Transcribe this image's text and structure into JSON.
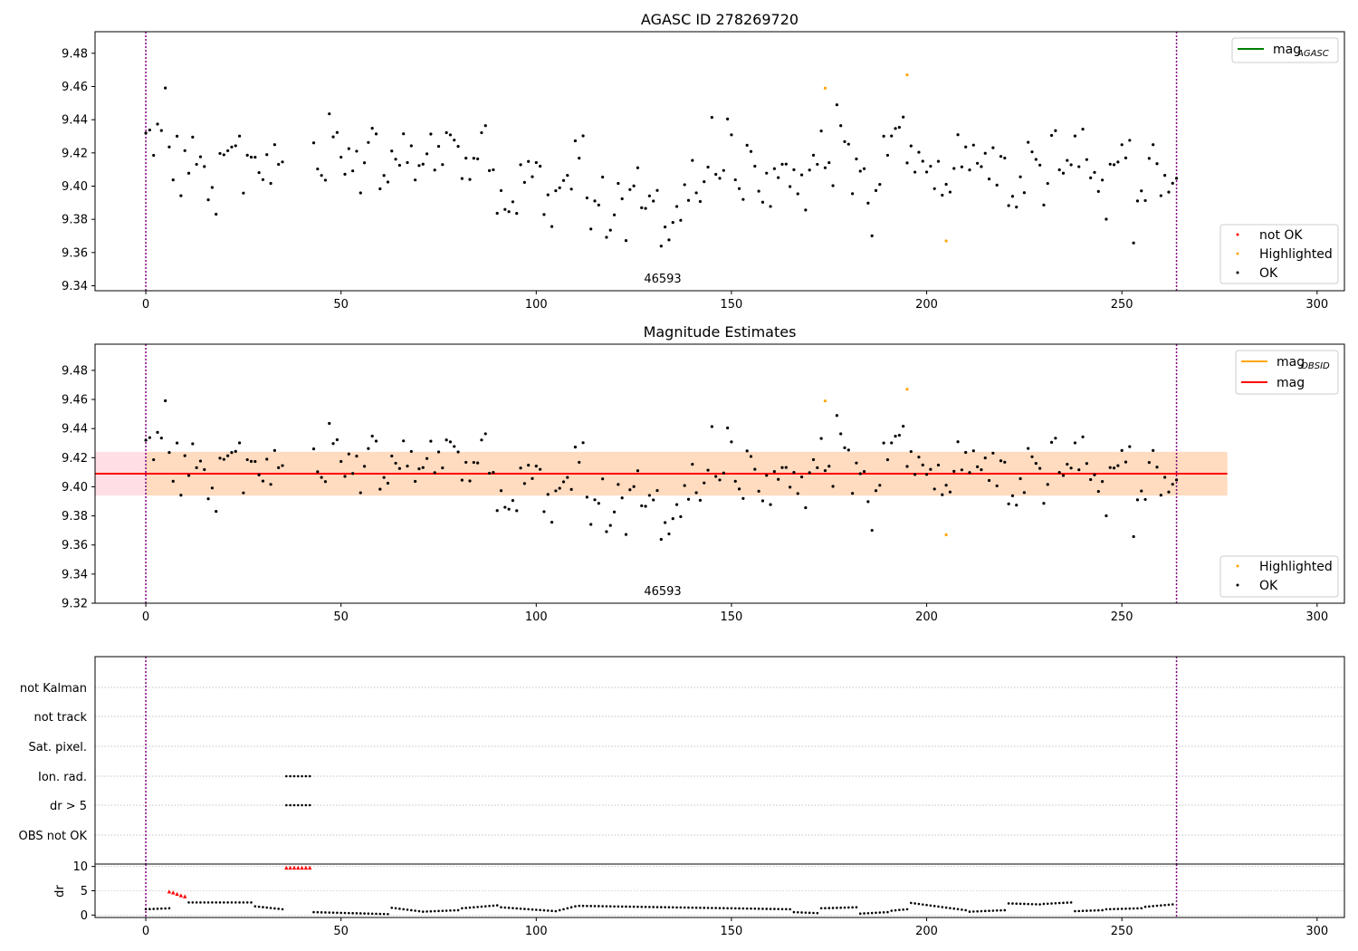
{
  "colors": {
    "ok": "#000000",
    "not_ok": "#ff0000",
    "highlighted": "#ffa500",
    "mag_agasc": "#008000",
    "mag_obsid": "#ffa500",
    "mag": "#ff0000",
    "band_mag": "#ffc0cb",
    "band_obsid": "#ffdab9",
    "obs_boundary": "#800080",
    "grid": "#b0b0b0"
  },
  "chart_data": [
    {
      "type": "scatter",
      "title": "AGASC ID 278269720",
      "xlim": [
        -13,
        307
      ],
      "ylim": [
        9.337,
        9.493
      ],
      "xticks": [
        0,
        50,
        100,
        150,
        200,
        250,
        300
      ],
      "yticks": [
        9.34,
        9.36,
        9.38,
        9.4,
        9.42,
        9.44,
        9.46,
        9.48
      ],
      "obs_boundaries": [
        0,
        264
      ],
      "annotation": "46593",
      "highlighted": [
        [
          174,
          9.459
        ],
        [
          195,
          9.467
        ],
        [
          205,
          9.367
        ]
      ],
      "legend_lines": [
        {
          "label": "mag",
          "sub": "AGASC",
          "color_key": "mag_agasc"
        }
      ],
      "legend_points": [
        {
          "label": "not OK",
          "color_key": "not_ok"
        },
        {
          "label": "Highlighted",
          "color_key": "highlighted"
        },
        {
          "label": "OK",
          "color_key": "ok"
        }
      ]
    },
    {
      "type": "scatter",
      "title": "Magnitude Estimates",
      "xlim": [
        -13,
        307
      ],
      "ylim": [
        9.32,
        9.498
      ],
      "xticks": [
        0,
        50,
        100,
        150,
        200,
        250,
        300
      ],
      "yticks": [
        9.32,
        9.34,
        9.36,
        9.38,
        9.4,
        9.42,
        9.44,
        9.46,
        9.48
      ],
      "obs_boundaries": [
        0,
        264
      ],
      "annotation": "46593",
      "mag": 9.409,
      "mag_band": [
        9.394,
        9.424
      ],
      "obsid_band": [
        9.394,
        9.424
      ],
      "band_x_range": [
        -13,
        277
      ],
      "obsid_band_x_range": [
        0,
        277
      ],
      "highlighted": [
        [
          174,
          9.459
        ],
        [
          195,
          9.467
        ],
        [
          205,
          9.367
        ]
      ],
      "legend_lines": [
        {
          "label": "mag",
          "sub": "OBSID",
          "color_key": "mag_obsid"
        },
        {
          "label": "mag",
          "sub": "",
          "color_key": "mag"
        }
      ],
      "legend_points": [
        {
          "label": "Highlighted",
          "color_key": "highlighted"
        },
        {
          "label": "OK",
          "color_key": "ok"
        }
      ]
    },
    {
      "type": "scatter",
      "title": "",
      "xlim": [
        -13,
        307
      ],
      "flag_labels": [
        "not Kalman",
        "not track",
        "Sat. pixel.",
        "Ion. rad.",
        "dr > 5",
        "OBS not OK"
      ],
      "flag_points": {
        "Ion. rad.": [
          36,
          37,
          38,
          39,
          40,
          41,
          42
        ],
        "dr > 5": [
          36,
          37,
          38,
          39,
          40,
          41,
          42
        ]
      },
      "obs_boundaries": [
        0,
        264
      ]
    },
    {
      "type": "scatter",
      "title": "",
      "ylabel": "dr",
      "xlim": [
        -13,
        307
      ],
      "ylim": [
        -0.5,
        10.5
      ],
      "xticks": [
        0,
        50,
        100,
        150,
        200,
        250,
        300
      ],
      "yticks": [
        0,
        5,
        10
      ],
      "obs_boundaries": [
        0,
        264
      ],
      "red_triangles": [
        [
          6,
          4.8
        ],
        [
          7,
          4.6
        ],
        [
          8,
          4.3
        ],
        [
          9,
          4.0
        ],
        [
          10,
          3.8
        ],
        [
          36,
          9.7
        ],
        [
          37,
          9.7
        ],
        [
          38,
          9.7
        ],
        [
          39,
          9.7
        ],
        [
          40,
          9.7
        ],
        [
          41,
          9.7
        ],
        [
          42,
          9.7
        ]
      ],
      "segments": [
        {
          "x": [
            0,
            6
          ],
          "y": [
            1.2,
            1.4
          ]
        },
        {
          "x": [
            11,
            27
          ],
          "y": [
            2.6,
            2.6
          ]
        },
        {
          "x": [
            28,
            35
          ],
          "y": [
            1.8,
            1.2
          ]
        },
        {
          "x": [
            43,
            62
          ],
          "y": [
            0.6,
            0.2
          ]
        },
        {
          "x": [
            63,
            70
          ],
          "y": [
            1.5,
            0.8
          ]
        },
        {
          "x": [
            71,
            80
          ],
          "y": [
            0.7,
            1.0
          ]
        },
        {
          "x": [
            81,
            90
          ],
          "y": [
            1.4,
            2.0
          ]
        },
        {
          "x": [
            91,
            105
          ],
          "y": [
            1.6,
            0.8
          ]
        },
        {
          "x": [
            106,
            110
          ],
          "y": [
            1.0,
            1.8
          ]
        },
        {
          "x": [
            111,
            165
          ],
          "y": [
            1.9,
            1.2
          ]
        },
        {
          "x": [
            166,
            172
          ],
          "y": [
            0.6,
            0.4
          ]
        },
        {
          "x": [
            173,
            182
          ],
          "y": [
            1.4,
            1.6
          ]
        },
        {
          "x": [
            183,
            190
          ],
          "y": [
            0.3,
            0.6
          ]
        },
        {
          "x": [
            191,
            195
          ],
          "y": [
            0.9,
            1.2
          ]
        },
        {
          "x": [
            196,
            210
          ],
          "y": [
            2.5,
            1.0
          ]
        },
        {
          "x": [
            211,
            220
          ],
          "y": [
            0.7,
            1.0
          ]
        },
        {
          "x": [
            221,
            229
          ],
          "y": [
            2.4,
            2.2
          ]
        },
        {
          "x": [
            230,
            237
          ],
          "y": [
            2.3,
            2.6
          ]
        },
        {
          "x": [
            238,
            245
          ],
          "y": [
            0.8,
            1.0
          ]
        },
        {
          "x": [
            246,
            255
          ],
          "y": [
            1.2,
            1.4
          ]
        },
        {
          "x": [
            256,
            263
          ],
          "y": [
            1.7,
            2.2
          ]
        }
      ]
    }
  ]
}
